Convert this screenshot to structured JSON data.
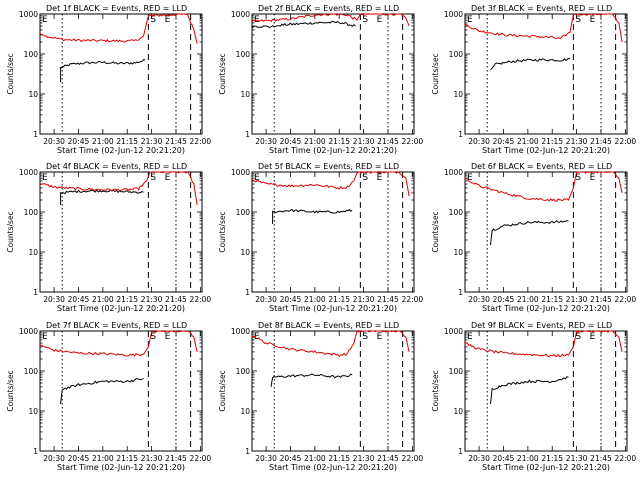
{
  "chart_data": [
    {
      "type": "line",
      "title": "Det 1f BLACK = Events, RED = LLD",
      "xlabel": "Start Time (02-Jun-12 20:21:20)",
      "ylabel": "Counts/sec",
      "y_scale": "log",
      "ylim": [
        1,
        1000
      ],
      "xlim": [
        "20:21:20",
        "22:01:00"
      ],
      "x_tick_labels": [
        "20:30",
        "20:45",
        "21:00",
        "21:15",
        "21:30",
        "21:45",
        "22:00"
      ],
      "y_tick_labels": [
        "1",
        "10",
        "100",
        "1000"
      ],
      "markers": {
        "E_left": "E",
        "S": "S",
        "E_right": "E"
      },
      "series": [
        {
          "name": "BLACK",
          "color": "#000000",
          "x": [
            "20:34",
            "20:34",
            "20:40",
            "20:50",
            "21:00",
            "21:10",
            "21:20",
            "21:26"
          ],
          "values": [
            20,
            45,
            55,
            60,
            62,
            58,
            60,
            70
          ]
        },
        {
          "name": "RED",
          "color": "#e00000",
          "x": [
            "20:21",
            "20:25",
            "20:35",
            "20:45",
            "21:00",
            "21:15",
            "21:20",
            "21:25",
            "21:28",
            "21:52",
            "21:56",
            "21:58"
          ],
          "values": [
            350,
            280,
            230,
            220,
            215,
            210,
            215,
            280,
            900,
            1000,
            400,
            180
          ]
        }
      ]
    },
    {
      "type": "line",
      "title": "Det 2f BLACK = Events, RED = LLD",
      "xlabel": "Start Time (02-Jun-12 20:21:20)",
      "ylabel": "Counts/sec",
      "y_scale": "log",
      "ylim": [
        1,
        1000
      ],
      "xlim": [
        "20:21:20",
        "22:01:00"
      ],
      "x_tick_labels": [
        "20:30",
        "20:45",
        "21:00",
        "21:15",
        "21:30",
        "21:45",
        "22:00"
      ],
      "y_tick_labels": [
        "1",
        "10",
        "100",
        "1000"
      ],
      "markers": {
        "E_left": "E",
        "S": "S",
        "E_right": "E"
      },
      "series": [
        {
          "name": "BLACK",
          "color": "#000000",
          "x": [
            "20:21",
            "20:35",
            "20:38",
            "20:45",
            "21:00",
            "21:15",
            "21:25"
          ],
          "values": [
            500,
            480,
            520,
            550,
            600,
            620,
            500
          ]
        },
        {
          "name": "RED",
          "color": "#e00000",
          "x": [
            "20:21",
            "20:35",
            "20:45",
            "21:00",
            "21:10",
            "21:20",
            "21:26",
            "21:28",
            "21:52",
            "21:56",
            "21:58"
          ],
          "values": [
            650,
            700,
            750,
            950,
            1000,
            950,
            700,
            1000,
            1000,
            800,
            500
          ]
        }
      ]
    },
    {
      "type": "line",
      "title": "Det 3f BLACK = Events, RED = LLD",
      "xlabel": "Start Time (02-Jun-12 20:21:20)",
      "ylabel": "Counts/sec",
      "y_scale": "log",
      "ylim": [
        1,
        1000
      ],
      "xlim": [
        "20:21:20",
        "22:01:00"
      ],
      "x_tick_labels": [
        "20:30",
        "20:45",
        "21:00",
        "21:15",
        "21:30",
        "21:45",
        "22:00"
      ],
      "y_tick_labels": [
        "1",
        "10",
        "100",
        "1000"
      ],
      "markers": {
        "E_left": "E",
        "S": "S",
        "E_right": "E"
      },
      "series": [
        {
          "name": "BLACK",
          "color": "#000000",
          "x": [
            "20:37",
            "20:40",
            "20:50",
            "21:00",
            "21:10",
            "21:20",
            "21:26"
          ],
          "values": [
            40,
            55,
            65,
            70,
            72,
            70,
            75
          ]
        },
        {
          "name": "RED",
          "color": "#e00000",
          "x": [
            "20:21",
            "20:30",
            "20:45",
            "21:00",
            "21:15",
            "21:20",
            "21:26",
            "21:28",
            "21:52",
            "21:56",
            "21:58"
          ],
          "values": [
            550,
            380,
            300,
            280,
            260,
            240,
            350,
            1000,
            1000,
            600,
            200
          ]
        }
      ]
    },
    {
      "type": "line",
      "title": "Det 4f BLACK = Events, RED = LLD",
      "xlabel": "Start Time (02-Jun-12 20:21:20)",
      "ylabel": "Counts/sec",
      "y_scale": "log",
      "ylim": [
        1,
        1000
      ],
      "xlim": [
        "20:21:20",
        "22:01:00"
      ],
      "x_tick_labels": [
        "20:30",
        "20:45",
        "21:00",
        "21:15",
        "21:30",
        "21:45",
        "22:00"
      ],
      "y_tick_labels": [
        "1",
        "10",
        "100",
        "1000"
      ],
      "markers": {
        "E_left": "E",
        "S": "S",
        "E_right": "E"
      },
      "series": [
        {
          "name": "BLACK",
          "color": "#000000",
          "x": [
            "20:34",
            "20:34",
            "20:45",
            "21:00",
            "21:15",
            "21:25"
          ],
          "values": [
            150,
            300,
            330,
            340,
            320,
            310
          ]
        },
        {
          "name": "RED",
          "color": "#e00000",
          "x": [
            "20:21",
            "20:30",
            "20:45",
            "21:00",
            "21:15",
            "21:22",
            "21:27",
            "21:29",
            "21:52",
            "21:56",
            "21:58"
          ],
          "values": [
            520,
            420,
            380,
            360,
            360,
            380,
            600,
            1000,
            1000,
            500,
            150
          ]
        }
      ]
    },
    {
      "type": "line",
      "title": "Det 5f BLACK = Events, RED = LLD",
      "xlabel": "Start Time (02-Jun-12 20:21:20)",
      "ylabel": "Counts/sec",
      "y_scale": "log",
      "ylim": [
        1,
        1000
      ],
      "xlim": [
        "20:21:20",
        "22:01:00"
      ],
      "x_tick_labels": [
        "20:30",
        "20:45",
        "21:00",
        "21:15",
        "21:30",
        "21:45",
        "22:00"
      ],
      "y_tick_labels": [
        "1",
        "10",
        "100",
        "1000"
      ],
      "markers": {
        "E_left": "E",
        "S": "S",
        "E_right": "E"
      },
      "series": [
        {
          "name": "BLACK",
          "color": "#000000",
          "x": [
            "20:34",
            "20:34",
            "20:45",
            "21:00",
            "21:15",
            "21:23"
          ],
          "values": [
            50,
            100,
            110,
            100,
            100,
            110
          ]
        },
        {
          "name": "RED",
          "color": "#e00000",
          "x": [
            "20:21",
            "20:30",
            "20:45",
            "21:00",
            "21:15",
            "21:20",
            "21:24",
            "21:26",
            "21:52",
            "21:56",
            "21:58"
          ],
          "values": [
            650,
            500,
            450,
            480,
            400,
            420,
            600,
            1000,
            1000,
            700,
            250
          ]
        }
      ]
    },
    {
      "type": "line",
      "title": "Det 6f BLACK = Events, RED = LLD",
      "xlabel": "Start Time (02-Jun-12 20:21:20)",
      "ylabel": "Counts/sec",
      "y_scale": "log",
      "ylim": [
        1,
        1000
      ],
      "xlim": [
        "20:21:20",
        "22:01:00"
      ],
      "x_tick_labels": [
        "20:30",
        "20:45",
        "21:00",
        "21:15",
        "21:30",
        "21:45",
        "22:00"
      ],
      "y_tick_labels": [
        "1",
        "10",
        "100",
        "1000"
      ],
      "markers": {
        "E_left": "E",
        "S": "S",
        "E_right": "E"
      },
      "series": [
        {
          "name": "BLACK",
          "color": "#000000",
          "x": [
            "20:37",
            "20:38",
            "20:45",
            "21:00",
            "21:15",
            "21:25"
          ],
          "values": [
            15,
            35,
            45,
            55,
            55,
            60
          ]
        },
        {
          "name": "RED",
          "color": "#e00000",
          "x": [
            "20:21",
            "20:30",
            "20:45",
            "21:00",
            "21:15",
            "21:25",
            "21:28",
            "21:30",
            "21:52",
            "21:56",
            "21:58"
          ],
          "values": [
            700,
            450,
            300,
            220,
            200,
            200,
            400,
            1000,
            1000,
            700,
            300
          ]
        }
      ]
    },
    {
      "type": "line",
      "title": "Det 7f BLACK = Events, RED = LLD",
      "xlabel": "Start Time (02-Jun-12 20:21:20)",
      "ylabel": "Counts/sec",
      "y_scale": "log",
      "ylim": [
        1,
        1000
      ],
      "xlim": [
        "20:21:20",
        "22:01:00"
      ],
      "x_tick_labels": [
        "20:30",
        "20:45",
        "21:00",
        "21:15",
        "21:30",
        "21:45",
        "22:00"
      ],
      "y_tick_labels": [
        "1",
        "10",
        "100",
        "1000"
      ],
      "markers": {
        "E_left": "E",
        "S": "S",
        "E_right": "E"
      },
      "series": [
        {
          "name": "BLACK",
          "color": "#000000",
          "x": [
            "20:34",
            "20:35",
            "20:45",
            "21:00",
            "21:15",
            "21:25"
          ],
          "values": [
            15,
            35,
            45,
            55,
            55,
            65
          ]
        },
        {
          "name": "RED",
          "color": "#e00000",
          "x": [
            "20:21",
            "20:30",
            "20:45",
            "21:00",
            "21:15",
            "21:25",
            "21:28",
            "21:30",
            "21:52",
            "21:56",
            "21:58"
          ],
          "values": [
            450,
            330,
            280,
            270,
            250,
            260,
            400,
            1000,
            1000,
            700,
            300
          ]
        }
      ]
    },
    {
      "type": "line",
      "title": "Det 8f BLACK = Events, RED = LLD",
      "xlabel": "Start Time (02-Jun-12 20:21:20)",
      "ylabel": "Counts/sec",
      "y_scale": "log",
      "ylim": [
        1,
        1000
      ],
      "xlim": [
        "20:21:20",
        "22:01:00"
      ],
      "x_tick_labels": [
        "20:30",
        "20:45",
        "21:00",
        "21:15",
        "21:30",
        "21:45",
        "22:00"
      ],
      "y_tick_labels": [
        "1",
        "10",
        "100",
        "1000"
      ],
      "markers": {
        "E_left": "E",
        "S": "S",
        "E_right": "E"
      },
      "series": [
        {
          "name": "BLACK",
          "color": "#000000",
          "x": [
            "20:33",
            "20:34",
            "20:45",
            "21:00",
            "21:15",
            "21:23"
          ],
          "values": [
            40,
            70,
            75,
            80,
            70,
            80
          ]
        },
        {
          "name": "RED",
          "color": "#e00000",
          "x": [
            "20:21",
            "20:30",
            "20:45",
            "21:00",
            "21:15",
            "21:20",
            "21:24",
            "21:26",
            "21:52",
            "21:56",
            "21:58"
          ],
          "values": [
            800,
            500,
            350,
            300,
            250,
            270,
            500,
            1000,
            1000,
            700,
            300
          ]
        }
      ]
    },
    {
      "type": "line",
      "title": "Det 9f BLACK = Events, RED = LLD",
      "xlabel": "Start Time (02-Jun-12 20:21:20)",
      "ylabel": "Counts/sec",
      "y_scale": "log",
      "ylim": [
        1,
        1000
      ],
      "xlim": [
        "20:21:20",
        "22:01:00"
      ],
      "x_tick_labels": [
        "20:30",
        "20:45",
        "21:00",
        "21:15",
        "21:30",
        "21:45",
        "22:00"
      ],
      "y_tick_labels": [
        "1",
        "10",
        "100",
        "1000"
      ],
      "markers": {
        "E_left": "E",
        "S": "S",
        "E_right": "E"
      },
      "series": [
        {
          "name": "BLACK",
          "color": "#000000",
          "x": [
            "20:37",
            "20:38",
            "20:45",
            "21:00",
            "21:15",
            "21:25"
          ],
          "values": [
            15,
            35,
            45,
            55,
            55,
            70
          ]
        },
        {
          "name": "RED",
          "color": "#e00000",
          "x": [
            "20:21",
            "20:30",
            "20:45",
            "21:00",
            "21:15",
            "21:25",
            "21:28",
            "21:30",
            "21:52",
            "21:56",
            "21:58"
          ],
          "values": [
            500,
            350,
            280,
            260,
            240,
            250,
            400,
            1000,
            1000,
            700,
            300
          ]
        }
      ]
    }
  ]
}
